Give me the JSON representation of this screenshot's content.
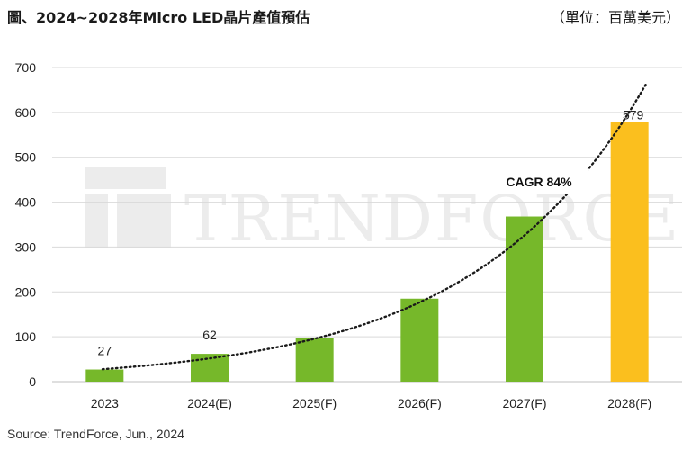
{
  "title": "圖、2024~2028年Micro LED晶片產值預估",
  "unit_label": "（單位：百萬美元）",
  "source": "Source: TrendForce, Jun., 2024",
  "watermark": "TRENDFORCE",
  "colors": {
    "bar": "#76b82a",
    "highlight_bar": "#fbbf1e",
    "grid": "#d9d9d9",
    "trend": "#1a1a1a"
  },
  "chart_data": {
    "type": "bar",
    "categories": [
      "2023",
      "2024(E)",
      "2025(F)",
      "2026(F)",
      "2027(F)",
      "2028(F)"
    ],
    "values": [
      27,
      62,
      97,
      185,
      368,
      579
    ],
    "data_labels": [
      "27",
      "62",
      "",
      "",
      "",
      "579"
    ],
    "yticks": [
      "0",
      "100",
      "200",
      "300",
      "400",
      "500",
      "600",
      "700"
    ],
    "ylim": [
      0,
      700
    ],
    "grid": true,
    "highlight_index": 5,
    "trendline": {
      "style": "dotted",
      "label": "CAGR 84%"
    }
  }
}
